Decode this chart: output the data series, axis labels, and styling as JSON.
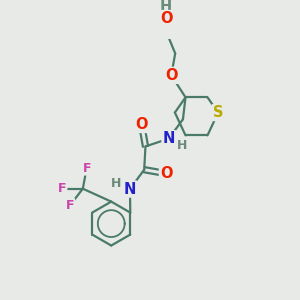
{
  "bg_color": "#e8eae8",
  "atom_colors": {
    "C": "#4a7a6a",
    "H": "#6a8a7a",
    "O": "#ee2200",
    "N": "#2222cc",
    "S": "#bbaa00",
    "F": "#cc44aa"
  },
  "bond_color": "#4a7a6a",
  "bond_width": 1.6,
  "font_size": 10.5
}
